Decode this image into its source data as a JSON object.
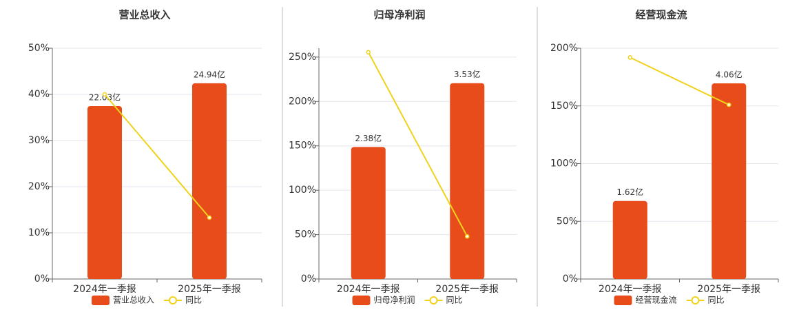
{
  "chart_data": [
    {
      "type": "combo",
      "title": "营业总收入",
      "categories": [
        "2024年一季报",
        "2025年一季报"
      ],
      "series": [
        {
          "name": "营业总收入",
          "type": "bar",
          "axis": "y2",
          "color": "#e84c1b",
          "values": [
            22.03,
            24.94
          ],
          "value_labels": [
            "22.03亿",
            "24.94亿"
          ]
        },
        {
          "name": "同比",
          "type": "line",
          "color": "#f0d21a",
          "values": [
            40,
            13.3
          ]
        }
      ],
      "ylim": [
        0,
        50
      ],
      "yticks": [
        {
          "value": 0,
          "label": "0%"
        },
        {
          "value": 10,
          "label": "10%"
        },
        {
          "value": 20,
          "label": "20%"
        },
        {
          "value": 30,
          "label": "30%"
        },
        {
          "value": 40,
          "label": "40%"
        },
        {
          "value": 50,
          "label": "50%"
        }
      ],
      "y2lim": [
        0,
        29.4
      ],
      "grid": true,
      "legend": "bottom"
    },
    {
      "type": "combo",
      "title": "归母净利润",
      "categories": [
        "2024年一季报",
        "2025年一季报"
      ],
      "series": [
        {
          "name": "归母净利润",
          "type": "bar",
          "axis": "y2",
          "color": "#e84c1b",
          "values": [
            2.38,
            3.53
          ],
          "value_labels": [
            "2.38亿",
            "3.53亿"
          ]
        },
        {
          "name": "同比",
          "type": "line",
          "color": "#f0d21a",
          "values": [
            255.5,
            48
          ]
        }
      ],
      "ylim": [
        0,
        260
      ],
      "yticks": [
        {
          "value": 0,
          "label": "0%"
        },
        {
          "value": 50,
          "label": "50%"
        },
        {
          "value": 100,
          "label": "100%"
        },
        {
          "value": 150,
          "label": "150%"
        },
        {
          "value": 200,
          "label": "200%"
        },
        {
          "value": 250,
          "label": "250%"
        }
      ],
      "y2lim": [
        0,
        4.16
      ],
      "grid": true,
      "legend": "bottom"
    },
    {
      "type": "combo",
      "title": "经营现金流",
      "categories": [
        "2024年一季报",
        "2025年一季报"
      ],
      "series": [
        {
          "name": "经营现金流",
          "type": "bar",
          "axis": "y2",
          "color": "#e84c1b",
          "values": [
            1.62,
            4.06
          ],
          "value_labels": [
            "1.62亿",
            "4.06亿"
          ]
        },
        {
          "name": "同比",
          "type": "line",
          "color": "#f0d21a",
          "values": [
            192,
            151
          ]
        }
      ],
      "ylim": [
        0,
        200
      ],
      "yticks": [
        {
          "value": 0,
          "label": "0%"
        },
        {
          "value": 50,
          "label": "50%"
        },
        {
          "value": 100,
          "label": "100%"
        },
        {
          "value": 150,
          "label": "150%"
        },
        {
          "value": 200,
          "label": "200%"
        }
      ],
      "y2lim": [
        0,
        4.79
      ],
      "grid": true,
      "legend": "bottom"
    }
  ]
}
